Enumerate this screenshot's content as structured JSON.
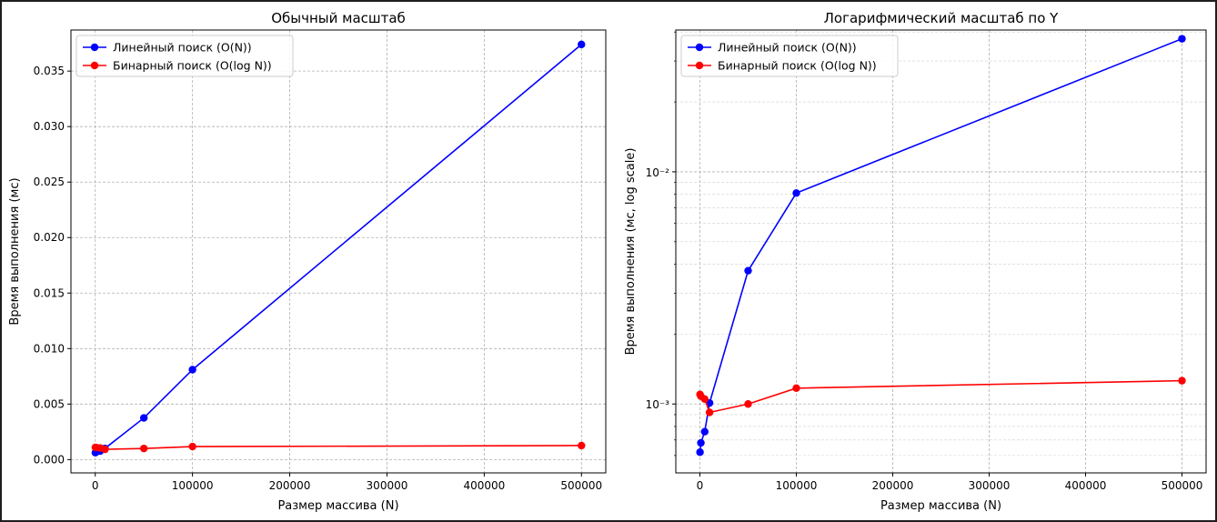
{
  "chart_data": [
    {
      "type": "line",
      "title": "Обычный масштаб",
      "xlabel": "Размер массива (N)",
      "ylabel": "Время выполнения (мс)",
      "yscale": "linear",
      "xlim": [
        -25000,
        525000
      ],
      "ylim": [
        -0.0012,
        0.0387
      ],
      "xticks": [
        0,
        100000,
        200000,
        300000,
        400000,
        500000
      ],
      "xtick_labels": [
        "0",
        "100000",
        "200000",
        "300000",
        "400000",
        "500000"
      ],
      "yticks": [
        0,
        0.005,
        0.01,
        0.015,
        0.02,
        0.025,
        0.03,
        0.035
      ],
      "ytick_labels": [
        "0.000",
        "0.005",
        "0.010",
        "0.015",
        "0.020",
        "0.025",
        "0.030",
        "0.035"
      ],
      "grid": true,
      "legend_position": "top-left",
      "x": [
        100,
        1000,
        5000,
        10000,
        50000,
        100000,
        500000
      ],
      "series": [
        {
          "name": "Линейный поиск (O(N))",
          "color": "#0000ff",
          "values": [
            0.00062,
            0.00068,
            0.00076,
            0.00101,
            0.00375,
            0.0081,
            0.0374
          ]
        },
        {
          "name": "Бинарный поиск (O(log N))",
          "color": "#ff0000",
          "values": [
            0.0011,
            0.00108,
            0.00105,
            0.00092,
            0.001,
            0.00117,
            0.00126
          ]
        }
      ]
    },
    {
      "type": "line",
      "title": "Логарифмический масштаб по Y",
      "xlabel": "Размер массива (N)",
      "ylabel": "Время выполнения (мс, log scale)",
      "yscale": "log",
      "xlim": [
        -25000,
        525000
      ],
      "ylim": [
        0.000505,
        0.0408
      ],
      "xticks": [
        0,
        100000,
        200000,
        300000,
        400000,
        500000
      ],
      "xtick_labels": [
        "0",
        "100000",
        "200000",
        "300000",
        "400000",
        "500000"
      ],
      "ytick_labels": [
        "10⁻³",
        "10⁻²"
      ],
      "grid": true,
      "legend_position": "top-left",
      "x": [
        100,
        1000,
        5000,
        10000,
        50000,
        100000,
        500000
      ],
      "series": [
        {
          "name": "Линейный поиск (O(N))",
          "color": "#0000ff",
          "values": [
            0.00062,
            0.00068,
            0.00076,
            0.00101,
            0.00375,
            0.0081,
            0.0374
          ]
        },
        {
          "name": "Бинарный поиск (O(log N))",
          "color": "#ff0000",
          "values": [
            0.0011,
            0.00108,
            0.00105,
            0.00092,
            0.001,
            0.00117,
            0.00126
          ]
        }
      ]
    }
  ]
}
